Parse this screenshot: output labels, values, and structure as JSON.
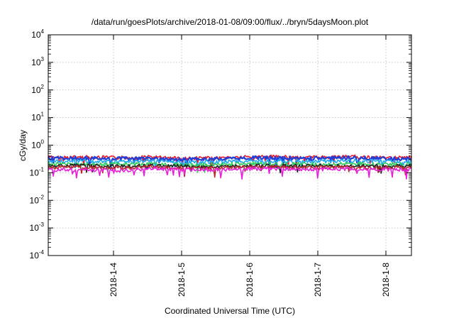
{
  "chart_data": {
    "type": "line",
    "title": "/data/run/goesPlots/archive/2018-01-08/09:00/flux/../bryn/5daysMoon.plot",
    "xlabel": "Coordinated Universal Time (UTC)",
    "ylabel": "cGy/day",
    "xscale": "time",
    "yscale": "log",
    "xlim": [
      "2018-01-03 01:00",
      "2018-01-08 09:00"
    ],
    "ylim": [
      0.0001,
      10000
    ],
    "grid": true,
    "legend": "none",
    "xticks": [
      {
        "date": "2018-01-04",
        "label": "2018-1-4"
      },
      {
        "date": "2018-01-05",
        "label": "2018-1-5"
      },
      {
        "date": "2018-01-06",
        "label": "2018-1-6"
      },
      {
        "date": "2018-01-07",
        "label": "2018-1-7"
      },
      {
        "date": "2018-01-08",
        "label": "2018-1-8"
      }
    ],
    "yticks": [
      {
        "value": 0.0001,
        "base": "10",
        "exp": "-4"
      },
      {
        "value": 0.001,
        "base": "10",
        "exp": "-3"
      },
      {
        "value": 0.01,
        "base": "10",
        "exp": "-2"
      },
      {
        "value": 0.1,
        "base": "10",
        "exp": "-1"
      },
      {
        "value": 1,
        "base": "10",
        "exp": "0"
      },
      {
        "value": 10,
        "base": "10",
        "exp": "1"
      },
      {
        "value": 100,
        "base": "10",
        "exp": "2"
      },
      {
        "value": 1000,
        "base": "10",
        "exp": "3"
      },
      {
        "value": 10000,
        "base": "10",
        "exp": "4"
      }
    ],
    "series": [
      {
        "color": "#e8192c",
        "x": [
          "2018-01-03 01:00",
          "2018-01-03 13:00",
          "2018-01-04 01:00",
          "2018-01-04 13:00",
          "2018-01-05 01:00",
          "2018-01-05 13:00",
          "2018-01-06 01:00",
          "2018-01-06 13:00",
          "2018-01-07 01:00",
          "2018-01-07 13:00",
          "2018-01-08 01:00",
          "2018-01-08 09:00"
        ],
        "y": [
          0.36,
          0.37,
          0.35,
          0.37,
          0.33,
          0.34,
          0.38,
          0.37,
          0.36,
          0.38,
          0.35,
          0.36
        ]
      },
      {
        "color": "#1f3fd6",
        "x": [
          "2018-01-03 01:00",
          "2018-01-03 13:00",
          "2018-01-04 01:00",
          "2018-01-04 13:00",
          "2018-01-05 01:00",
          "2018-01-05 13:00",
          "2018-01-06 01:00",
          "2018-01-06 13:00",
          "2018-01-07 01:00",
          "2018-01-07 13:00",
          "2018-01-08 01:00",
          "2018-01-08 09:00"
        ],
        "y": [
          0.33,
          0.34,
          0.32,
          0.34,
          0.3,
          0.31,
          0.35,
          0.34,
          0.33,
          0.35,
          0.32,
          0.33
        ]
      },
      {
        "color": "#1ea7f0",
        "x": [
          "2018-01-03 01:00",
          "2018-01-03 13:00",
          "2018-01-04 01:00",
          "2018-01-04 13:00",
          "2018-01-05 01:00",
          "2018-01-05 13:00",
          "2018-01-06 01:00",
          "2018-01-06 13:00",
          "2018-01-07 01:00",
          "2018-01-07 13:00",
          "2018-01-08 01:00",
          "2018-01-08 09:00"
        ],
        "y": [
          0.26,
          0.27,
          0.25,
          0.27,
          0.24,
          0.25,
          0.27,
          0.27,
          0.26,
          0.27,
          0.25,
          0.26
        ]
      },
      {
        "color": "#2ecc5a",
        "x": [
          "2018-01-03 01:00",
          "2018-01-03 13:00",
          "2018-01-04 01:00",
          "2018-01-04 13:00",
          "2018-01-05 01:00",
          "2018-01-05 13:00",
          "2018-01-06 01:00",
          "2018-01-06 13:00",
          "2018-01-07 01:00",
          "2018-01-07 13:00",
          "2018-01-08 01:00",
          "2018-01-08 09:00"
        ],
        "y": [
          0.21,
          0.21,
          0.2,
          0.21,
          0.19,
          0.2,
          0.21,
          0.21,
          0.2,
          0.21,
          0.2,
          0.21
        ]
      },
      {
        "color": "#222222",
        "x": [
          "2018-01-03 01:00",
          "2018-01-03 13:00",
          "2018-01-04 01:00",
          "2018-01-04 13:00",
          "2018-01-05 01:00",
          "2018-01-05 13:00",
          "2018-01-06 01:00",
          "2018-01-06 13:00",
          "2018-01-07 01:00",
          "2018-01-07 13:00",
          "2018-01-08 01:00",
          "2018-01-08 09:00"
        ],
        "y": [
          0.18,
          0.18,
          0.17,
          0.18,
          0.17,
          0.17,
          0.18,
          0.18,
          0.18,
          0.18,
          0.17,
          0.18
        ]
      },
      {
        "color": "#b8282e",
        "x": [
          "2018-01-03 01:00",
          "2018-01-03 13:00",
          "2018-01-04 01:00",
          "2018-01-04 13:00",
          "2018-01-05 01:00",
          "2018-01-05 13:00",
          "2018-01-06 01:00",
          "2018-01-06 13:00",
          "2018-01-07 01:00",
          "2018-01-07 13:00",
          "2018-01-08 01:00",
          "2018-01-08 09:00"
        ],
        "y": [
          0.16,
          0.16,
          0.15,
          0.16,
          0.15,
          0.15,
          0.16,
          0.16,
          0.16,
          0.16,
          0.15,
          0.16
        ]
      },
      {
        "color": "#e81fd8",
        "x": [
          "2018-01-03 01:00",
          "2018-01-03 13:00",
          "2018-01-04 01:00",
          "2018-01-04 13:00",
          "2018-01-05 01:00",
          "2018-01-05 13:00",
          "2018-01-06 01:00",
          "2018-01-06 13:00",
          "2018-01-07 01:00",
          "2018-01-07 13:00",
          "2018-01-08 01:00",
          "2018-01-08 09:00"
        ],
        "y": [
          0.13,
          0.13,
          0.12,
          0.14,
          0.13,
          0.13,
          0.14,
          0.14,
          0.13,
          0.14,
          0.13,
          0.13
        ]
      }
    ]
  }
}
